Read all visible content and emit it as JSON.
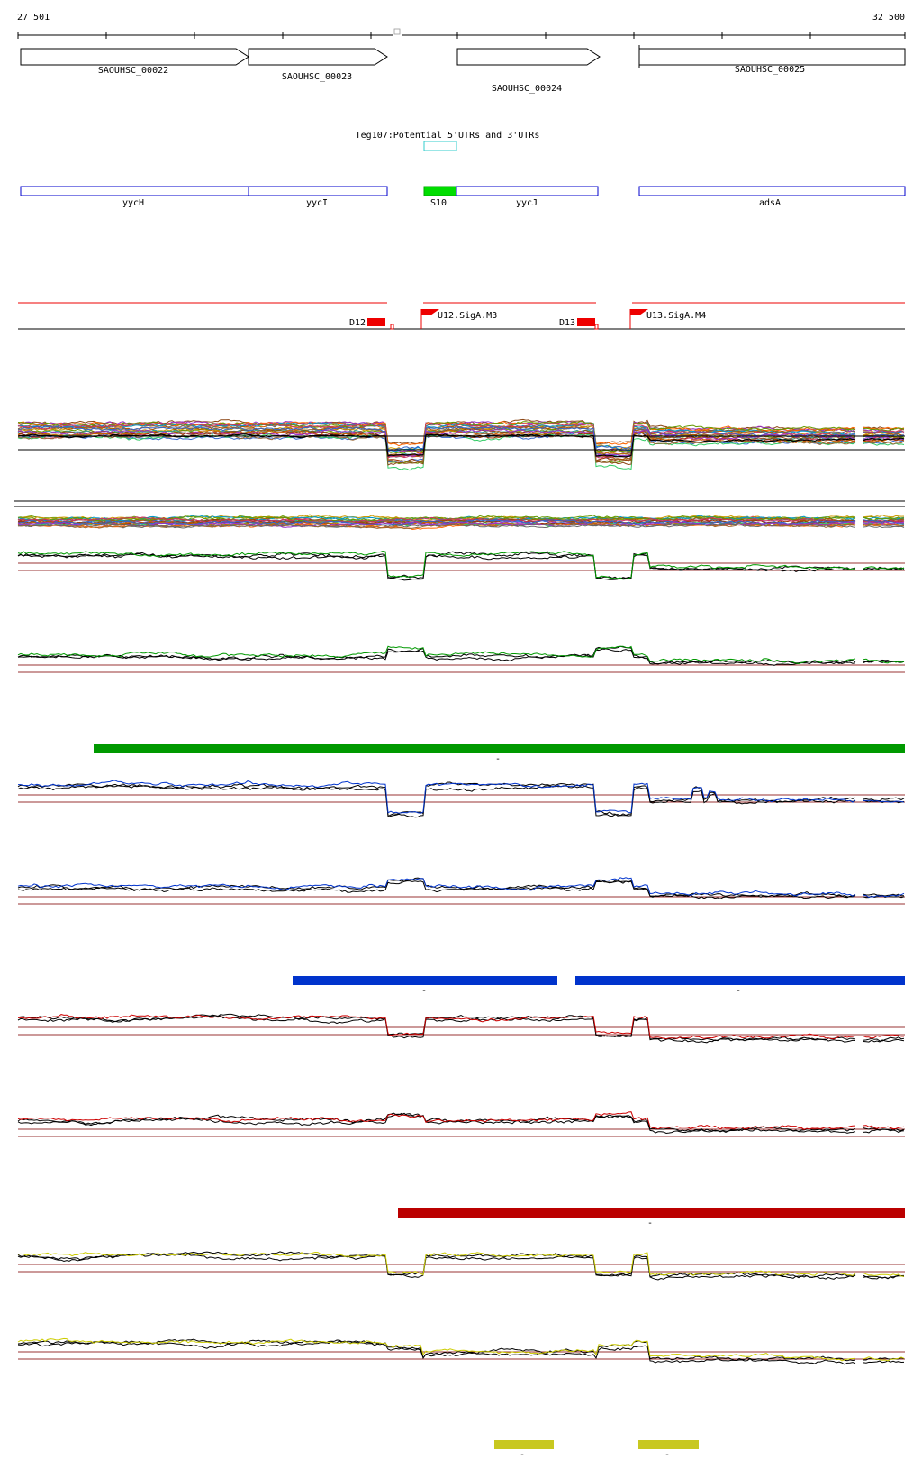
{
  "ruler": {
    "start_label": "27 501",
    "end_label": "32 500"
  },
  "genes": [
    {
      "id": "SAOUHSC_00022"
    },
    {
      "id": "SAOUHSC_00023"
    },
    {
      "id": "SAOUHSC_00024"
    },
    {
      "id": "SAOUHSC_00025"
    }
  ],
  "utr_track": {
    "title": "Teg107:Potential 5'UTRs and 3'UTRs"
  },
  "gene_names": [
    {
      "label": "yycH"
    },
    {
      "label": "yycI"
    },
    {
      "label": "S10"
    },
    {
      "label": "yycJ"
    },
    {
      "label": "adsA"
    }
  ],
  "promoters": [
    {
      "label": "D12"
    },
    {
      "label": "U12.SigA.M3"
    },
    {
      "label": "D13"
    },
    {
      "label": "U13.SigA.M4"
    }
  ],
  "colors": {
    "gene_outline": "#0000cc",
    "s10_fill": "#00dd00",
    "utr_box": "#33cccc",
    "promoter": "#ee0000",
    "threshold": "#993333",
    "green": "#009900",
    "blue": "#0033cc",
    "red": "#cc0000",
    "yellow": "#cccc00",
    "dark_red_bar": "#bb0000",
    "yellow_bar": "#c8c820"
  },
  "condition_bars": [
    {
      "color_key": "green",
      "label": "-"
    },
    {
      "color_key": "blue",
      "label": "-"
    },
    {
      "color_key": "blue",
      "label": "-"
    },
    {
      "color_key": "dark_red_bar",
      "label": "-"
    },
    {
      "color_key": "yellow_bar",
      "label": "-"
    },
    {
      "color_key": "yellow_bar",
      "label": "-"
    }
  ]
}
